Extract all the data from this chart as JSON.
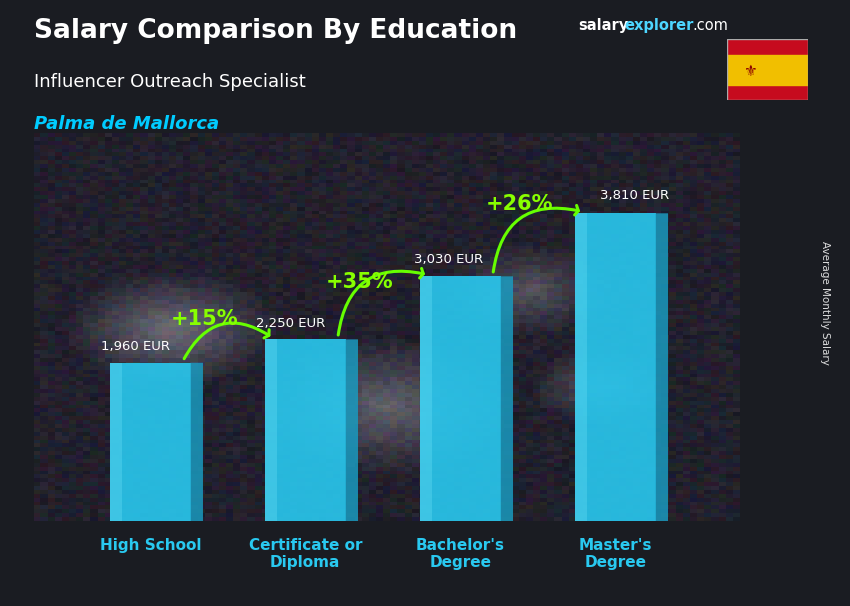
{
  "title_bold": "Salary Comparison By Education",
  "subtitle": "Influencer Outreach Specialist",
  "location": "Palma de Mallorca",
  "watermark_salary": "salary",
  "watermark_explorer": "explorer",
  "watermark_com": ".com",
  "ylabel": "Average Monthly Salary",
  "categories": [
    "High School",
    "Certificate or\nDiploma",
    "Bachelor's\nDegree",
    "Master's\nDegree"
  ],
  "values": [
    1960,
    2250,
    3030,
    3810
  ],
  "value_labels": [
    "1,960 EUR",
    "2,250 EUR",
    "3,030 EUR",
    "3,810 EUR"
  ],
  "pct_labels": [
    "+15%",
    "+35%",
    "+26%"
  ],
  "bar_front_color": "#29c9f0",
  "bar_left_color": "#1a9abf",
  "bar_top_color": "#60dff8",
  "title_color": "#ffffff",
  "subtitle_color": "#ffffff",
  "location_color": "#00ccff",
  "watermark_salary_color": "#ffffff",
  "watermark_explorer_color": "#4dd6ff",
  "watermark_com_color": "#ffffff",
  "pct_color": "#88ff00",
  "value_label_color": "#ffffff",
  "bg_dark": "#1a1c22",
  "ylim": [
    0,
    4800
  ],
  "bar_width": 0.52,
  "bar_depth": 0.08,
  "figsize": [
    8.5,
    6.06
  ],
  "dpi": 100,
  "flag_colors": [
    "#c60b1e",
    "#f1bf00",
    "#c60b1e"
  ],
  "arrow_color": "#66ff00",
  "arrow_lw": 2.2
}
